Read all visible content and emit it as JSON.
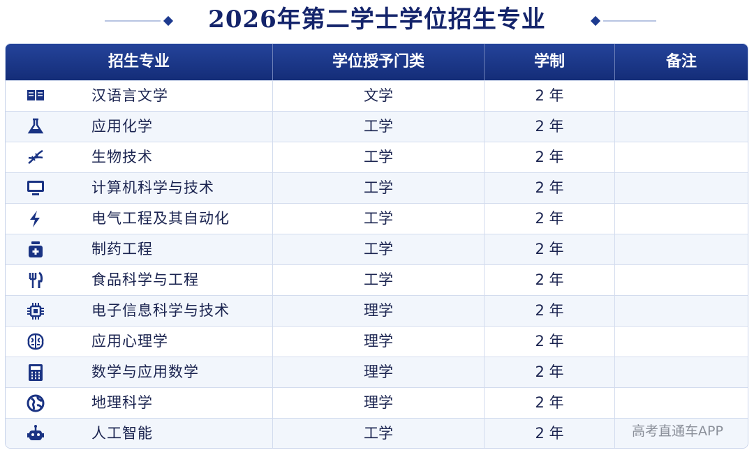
{
  "title": "2026年第二学士学位招生专业",
  "table": {
    "header": [
      "招生专业",
      "学位授予门类",
      "学制",
      "备注"
    ],
    "rows": [
      [
        "汉语言文学",
        "文学",
        "2 年"
      ],
      [
        "应用化学",
        "工学",
        "2 年"
      ],
      [
        "生物技术",
        "工学",
        "2 年"
      ],
      [
        "计算机科学与技术",
        "工学",
        "2 年"
      ],
      [
        "电气工程及其自动化",
        "工学",
        "2 年"
      ],
      [
        "制药工程",
        "工学",
        "2 年"
      ],
      [
        "食品科学与工程",
        "工学",
        "2 年"
      ],
      [
        "电子信息科学与技术",
        "理学",
        "2 年"
      ],
      [
        "应用心理学",
        "理学",
        "2 年"
      ],
      [
        "数学与应用数学",
        "理学",
        "2 年"
      ],
      [
        "地理科学",
        "理学",
        "2 年"
      ],
      [
        "人工智能",
        "工学",
        "2 年"
      ]
    ]
  },
  "watermark": "高考直通车APP"
}
